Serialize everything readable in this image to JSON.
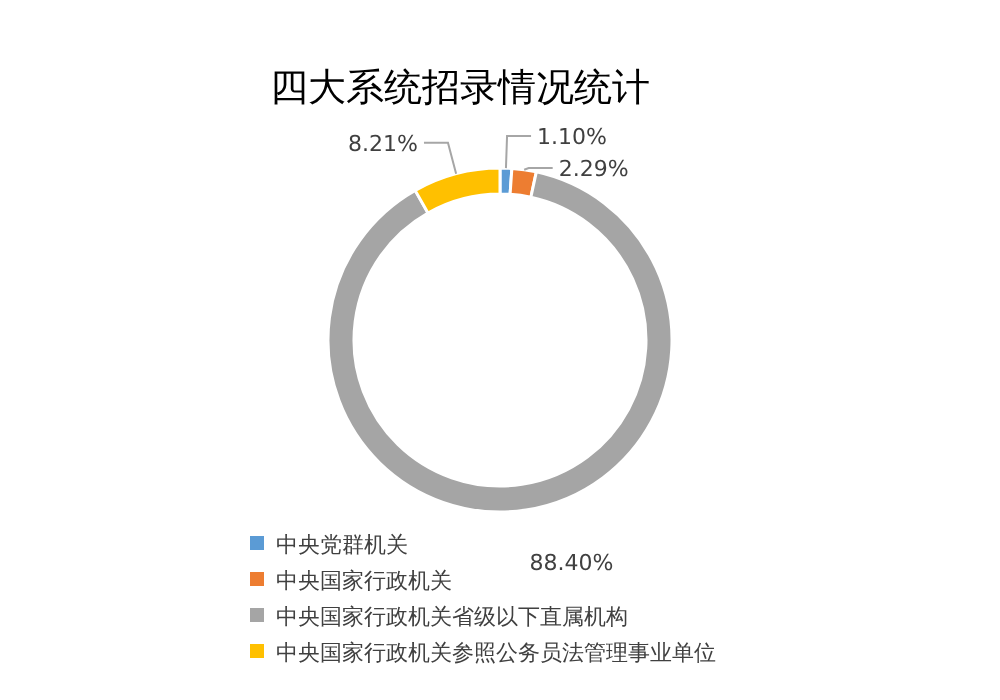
{
  "chart_data": {
    "type": "donut",
    "title": "四大系统招录情况统计",
    "categories": [
      "中央党群机关",
      "中央国家行政机关",
      "中央国家行政机关省级以下直属机构",
      "中央国家行政机关参照公务员法管理事业单位"
    ],
    "values": [
      1.1,
      2.29,
      88.4,
      8.21
    ],
    "colors": [
      "#5b9bd5",
      "#ed7d31",
      "#a5a5a5",
      "#ffc000"
    ],
    "value_labels": [
      "1.10%",
      "2.29%",
      "88.40%",
      "8.21%"
    ],
    "legend": "bottom left"
  }
}
